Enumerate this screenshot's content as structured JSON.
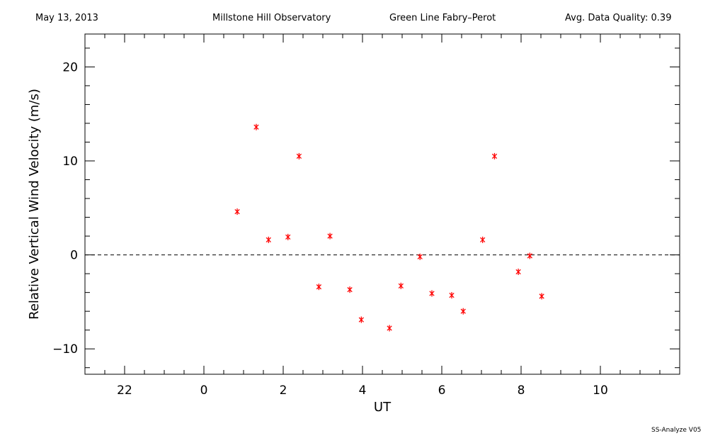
{
  "header": {
    "date": "May 13, 2013",
    "observatory": "Millstone Hill Observatory",
    "instrument": "Green Line Fabry–Perot",
    "quality": "Avg. Data Quality: 0.39"
  },
  "footer": "SS-Analyze V05",
  "colors": {
    "marker": "#ff0000",
    "axis": "#000000"
  },
  "chart_data": {
    "type": "scatter",
    "xlabel": "UT",
    "ylabel": "Relative Vertical Wind Velocity (m/s)",
    "xlim": [
      -3,
      12
    ],
    "ylim": [
      -12.7,
      23.5
    ],
    "x_ticks": [
      22,
      0,
      2,
      4,
      6,
      8,
      10
    ],
    "x_tick_positions": [
      -2,
      0,
      2,
      4,
      6,
      8,
      10
    ],
    "x_minor_step": 0.5,
    "y_ticks": [
      -10,
      0,
      10,
      20
    ],
    "y_minor_step": 2,
    "reference_line": {
      "y": 0,
      "style": "dashed"
    },
    "marker": "asterisk",
    "series": [
      {
        "x": [
          0.84,
          1.32,
          1.63,
          2.12,
          2.4,
          2.9,
          3.18,
          3.68,
          3.97,
          4.68,
          4.97,
          5.45,
          5.75,
          6.25,
          6.54,
          7.03,
          7.33,
          7.93,
          8.22,
          8.52
        ],
        "y": [
          4.6,
          13.6,
          1.6,
          1.9,
          10.5,
          -3.4,
          2.0,
          -3.7,
          -6.9,
          -7.8,
          -3.3,
          -0.2,
          -4.1,
          -4.3,
          -6.0,
          1.6,
          10.5,
          -1.8,
          -0.1,
          -4.4
        ]
      }
    ]
  }
}
